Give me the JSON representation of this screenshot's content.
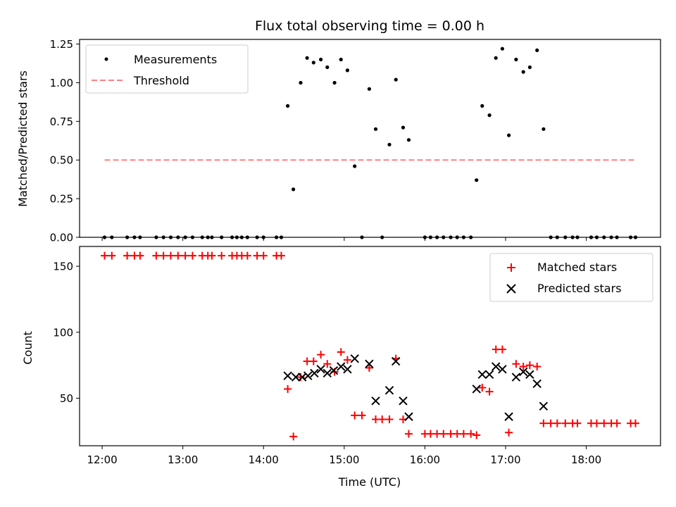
{
  "chart_data": [
    {
      "panel": "top",
      "type": "scatter",
      "title": "Flux total observing time = 0.00 h",
      "xlabel": "",
      "ylabel": "Matched/Predicted stars",
      "xlim": [
        11.72,
        18.92
      ],
      "ylim": [
        0,
        1.28
      ],
      "yticks": [
        0.0,
        0.25,
        0.5,
        0.75,
        1.0,
        1.25
      ],
      "ytick_labels": [
        "0.00",
        "0.25",
        "0.50",
        "0.75",
        "1.00",
        "1.25"
      ],
      "legend_position": "top-left",
      "series": [
        {
          "name": "Measurements",
          "marker": "dot",
          "color": "#000000",
          "points": [
            [
              12.03,
              0
            ],
            [
              12.12,
              0
            ],
            [
              12.31,
              0
            ],
            [
              12.4,
              0
            ],
            [
              12.47,
              0
            ],
            [
              12.67,
              0
            ],
            [
              12.76,
              0
            ],
            [
              12.85,
              0
            ],
            [
              12.94,
              0
            ],
            [
              13.03,
              0
            ],
            [
              13.12,
              0
            ],
            [
              13.24,
              0
            ],
            [
              13.31,
              0
            ],
            [
              13.36,
              0
            ],
            [
              13.48,
              0
            ],
            [
              13.61,
              0
            ],
            [
              13.67,
              0
            ],
            [
              13.73,
              0
            ],
            [
              13.8,
              0
            ],
            [
              13.92,
              0
            ],
            [
              14.0,
              0
            ],
            [
              14.16,
              0
            ],
            [
              14.22,
              0
            ],
            [
              14.3,
              0.85
            ],
            [
              14.37,
              0.31
            ],
            [
              14.46,
              1.0
            ],
            [
              14.54,
              1.16
            ],
            [
              14.62,
              1.13
            ],
            [
              14.71,
              1.15
            ],
            [
              14.79,
              1.1
            ],
            [
              14.88,
              1.0
            ],
            [
              14.96,
              1.15
            ],
            [
              15.04,
              1.08
            ],
            [
              15.13,
              0.46
            ],
            [
              15.22,
              0.0
            ],
            [
              15.31,
              0.96
            ],
            [
              15.39,
              0.7
            ],
            [
              15.47,
              0.0
            ],
            [
              15.56,
              0.6
            ],
            [
              15.64,
              1.02
            ],
            [
              15.73,
              0.71
            ],
            [
              15.8,
              0.63
            ],
            [
              16.0,
              0
            ],
            [
              16.07,
              0
            ],
            [
              16.15,
              0
            ],
            [
              16.23,
              0
            ],
            [
              16.32,
              0
            ],
            [
              16.4,
              0
            ],
            [
              16.48,
              0
            ],
            [
              16.57,
              0
            ],
            [
              16.64,
              0.37
            ],
            [
              16.71,
              0.85
            ],
            [
              16.8,
              0.79
            ],
            [
              16.88,
              1.16
            ],
            [
              16.96,
              1.22
            ],
            [
              17.04,
              0.66
            ],
            [
              17.13,
              1.15
            ],
            [
              17.22,
              1.07
            ],
            [
              17.3,
              1.1
            ],
            [
              17.39,
              1.21
            ],
            [
              17.47,
              0.7
            ],
            [
              17.56,
              0
            ],
            [
              17.64,
              0
            ],
            [
              17.74,
              0
            ],
            [
              17.83,
              0
            ],
            [
              17.89,
              0
            ],
            [
              18.06,
              0
            ],
            [
              18.13,
              0
            ],
            [
              18.22,
              0
            ],
            [
              18.31,
              0
            ],
            [
              18.38,
              0
            ],
            [
              18.55,
              0
            ],
            [
              18.61,
              0
            ]
          ]
        },
        {
          "name": "Threshold",
          "style": "dashed",
          "color": "#ff8080",
          "x": [
            12.03,
            18.61
          ],
          "y": [
            0.5,
            0.5
          ]
        }
      ]
    },
    {
      "panel": "bottom",
      "type": "scatter",
      "title": "",
      "xlabel": "Time (UTC)",
      "ylabel": "Count",
      "xlim": [
        11.72,
        18.92
      ],
      "ylim": [
        14,
        165
      ],
      "xticks": [
        12,
        13,
        14,
        15,
        16,
        17,
        18
      ],
      "xtick_labels": [
        "12:00",
        "13:00",
        "14:00",
        "15:00",
        "16:00",
        "17:00",
        "18:00"
      ],
      "yticks": [
        50,
        100,
        150
      ],
      "ytick_labels": [
        "50",
        "100",
        "150"
      ],
      "legend_position": "top-right",
      "series": [
        {
          "name": "Matched stars",
          "marker": "plus",
          "color": "#ff0000",
          "points": [
            [
              12.03,
              158
            ],
            [
              12.12,
              158
            ],
            [
              12.31,
              158
            ],
            [
              12.4,
              158
            ],
            [
              12.47,
              158
            ],
            [
              12.67,
              158
            ],
            [
              12.76,
              158
            ],
            [
              12.85,
              158
            ],
            [
              12.94,
              158
            ],
            [
              13.03,
              158
            ],
            [
              13.12,
              158
            ],
            [
              13.24,
              158
            ],
            [
              13.31,
              158
            ],
            [
              13.36,
              158
            ],
            [
              13.48,
              158
            ],
            [
              13.61,
              158
            ],
            [
              13.67,
              158
            ],
            [
              13.73,
              158
            ],
            [
              13.8,
              158
            ],
            [
              13.92,
              158
            ],
            [
              14.0,
              158
            ],
            [
              14.16,
              158
            ],
            [
              14.22,
              158
            ],
            [
              14.3,
              57
            ],
            [
              14.37,
              21
            ],
            [
              14.46,
              66
            ],
            [
              14.54,
              78
            ],
            [
              14.62,
              78
            ],
            [
              14.71,
              83
            ],
            [
              14.79,
              76
            ],
            [
              14.88,
              70
            ],
            [
              14.96,
              85
            ],
            [
              15.04,
              79
            ],
            [
              15.13,
              37
            ],
            [
              15.22,
              37
            ],
            [
              15.31,
              73
            ],
            [
              15.39,
              34
            ],
            [
              15.47,
              34
            ],
            [
              15.56,
              34
            ],
            [
              15.64,
              80
            ],
            [
              15.73,
              34
            ],
            [
              15.8,
              23
            ],
            [
              16.0,
              23
            ],
            [
              16.07,
              23
            ],
            [
              16.15,
              23
            ],
            [
              16.23,
              23
            ],
            [
              16.32,
              23
            ],
            [
              16.4,
              23
            ],
            [
              16.48,
              23
            ],
            [
              16.57,
              23
            ],
            [
              16.64,
              22
            ],
            [
              16.71,
              58
            ],
            [
              16.8,
              55
            ],
            [
              16.88,
              87
            ],
            [
              16.96,
              87
            ],
            [
              17.04,
              24
            ],
            [
              17.13,
              76
            ],
            [
              17.22,
              74
            ],
            [
              17.3,
              75
            ],
            [
              17.39,
              74
            ],
            [
              17.47,
              31
            ],
            [
              17.56,
              31
            ],
            [
              17.64,
              31
            ],
            [
              17.74,
              31
            ],
            [
              17.83,
              31
            ],
            [
              17.89,
              31
            ],
            [
              18.06,
              31
            ],
            [
              18.13,
              31
            ],
            [
              18.22,
              31
            ],
            [
              18.31,
              31
            ],
            [
              18.38,
              31
            ],
            [
              18.55,
              31
            ],
            [
              18.61,
              31
            ]
          ]
        },
        {
          "name": "Predicted stars",
          "marker": "x",
          "color": "#000000",
          "points": [
            [
              14.3,
              67
            ],
            [
              14.4,
              66
            ],
            [
              14.48,
              66
            ],
            [
              14.55,
              67
            ],
            [
              14.63,
              69
            ],
            [
              14.71,
              72
            ],
            [
              14.79,
              69
            ],
            [
              14.87,
              71
            ],
            [
              14.96,
              74
            ],
            [
              15.04,
              72
            ],
            [
              15.13,
              80
            ],
            [
              15.31,
              76
            ],
            [
              15.39,
              48
            ],
            [
              15.56,
              56
            ],
            [
              15.64,
              78
            ],
            [
              15.73,
              48
            ],
            [
              15.8,
              36
            ],
            [
              16.64,
              57
            ],
            [
              16.71,
              68
            ],
            [
              16.8,
              68
            ],
            [
              16.88,
              74
            ],
            [
              16.96,
              72
            ],
            [
              17.04,
              36
            ],
            [
              17.13,
              66
            ],
            [
              17.22,
              70
            ],
            [
              17.3,
              68
            ],
            [
              17.39,
              61
            ],
            [
              17.47,
              44
            ]
          ]
        }
      ]
    }
  ]
}
